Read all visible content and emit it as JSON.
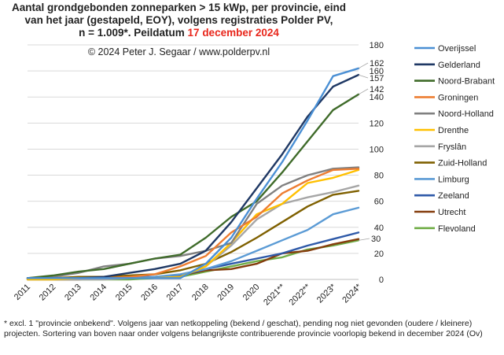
{
  "header": {
    "title_line1": "Aantal grondgebonden zonneparken > 15 kWp, per provincie, eind",
    "title_line2": "van het jaar (gestapeld, EOY), volgens registraties Polder PV,",
    "title_line3_prefix": "n = 1.009*. Peildatum ",
    "title_line3_date": "17 december 2024",
    "copyright": "© 2024 Peter J. Segaar / www.polderpv.nl"
  },
  "footnote": "* excl. 1 \"provincie onbekend\". Volgens jaar van netkoppeling (bekend / geschat), pending nog niet gevonden (oudere / kleinere) projecten. Sortering van boven naar onder volgens belangrijkste contribuerende provincie voorlopig bekend in december 2024 (Ov)",
  "colors": {
    "highlight": "#e8261b",
    "grid": "#d9d9d9",
    "text": "#222222"
  },
  "chart_data": {
    "type": "line",
    "title": "",
    "xlabel": "",
    "ylabel": "",
    "categories": [
      "2011",
      "2012",
      "2013",
      "2014",
      "2015",
      "2016",
      "2017",
      "2018",
      "2019",
      "2020",
      "2021**",
      "2022**",
      "2023*",
      "2024*"
    ],
    "ylim": [
      0,
      180
    ],
    "yticks": [
      0,
      20,
      40,
      60,
      80,
      100,
      120,
      140,
      160,
      180
    ],
    "y_axis_position": "right",
    "grid": true,
    "legend_position": "right",
    "series": [
      {
        "name": "Overijssel",
        "color": "#4a8fd4",
        "values": [
          1,
          1,
          1,
          1,
          1,
          1,
          1,
          12,
          32,
          62,
          90,
          122,
          156,
          162
        ]
      },
      {
        "name": "Gelderland",
        "color": "#1f3864",
        "values": [
          1,
          1,
          1,
          2,
          5,
          8,
          12,
          22,
          44,
          70,
          96,
          125,
          148,
          157
        ]
      },
      {
        "name": "Noord-Brabant",
        "color": "#3f6b2a",
        "values": [
          1,
          3,
          6,
          8,
          12,
          16,
          19,
          32,
          48,
          60,
          82,
          106,
          130,
          142
        ]
      },
      {
        "name": "Groningen",
        "color": "#ed7d31",
        "values": [
          1,
          1,
          1,
          1,
          2,
          4,
          10,
          18,
          36,
          48,
          66,
          76,
          84,
          85
        ]
      },
      {
        "name": "Noord-Holland",
        "color": "#808080",
        "values": [
          1,
          2,
          5,
          10,
          12,
          16,
          18,
          22,
          28,
          58,
          72,
          80,
          85,
          86
        ]
      },
      {
        "name": "Drenthe",
        "color": "#ffc000",
        "values": [
          0,
          0,
          1,
          1,
          1,
          1,
          2,
          10,
          28,
          50,
          58,
          74,
          78,
          84
        ]
      },
      {
        "name": "Fryslân",
        "color": "#a6a6a6",
        "values": [
          0,
          0,
          0,
          0,
          1,
          1,
          2,
          10,
          26,
          46,
          58,
          63,
          67,
          72
        ]
      },
      {
        "name": "Zuid-Holland",
        "color": "#7f6000",
        "values": [
          1,
          1,
          2,
          2,
          3,
          4,
          7,
          12,
          21,
          32,
          44,
          56,
          65,
          68
        ]
      },
      {
        "name": "Limburg",
        "color": "#5b9bd5",
        "values": [
          0,
          0,
          1,
          1,
          1,
          2,
          4,
          8,
          14,
          22,
          30,
          38,
          50,
          55
        ]
      },
      {
        "name": "Zeeland",
        "color": "#2e59a8",
        "values": [
          1,
          1,
          1,
          1,
          2,
          2,
          3,
          8,
          12,
          16,
          20,
          26,
          31,
          36
        ]
      },
      {
        "name": "Utrecht",
        "color": "#843c0c",
        "values": [
          0,
          0,
          0,
          1,
          1,
          2,
          3,
          7,
          8,
          12,
          20,
          22,
          27,
          31
        ]
      },
      {
        "name": "Flevoland",
        "color": "#70ad47",
        "values": [
          0,
          0,
          0,
          0,
          0,
          1,
          2,
          6,
          10,
          14,
          17,
          23,
          26,
          30
        ]
      }
    ],
    "end_labels": [
      {
        "series": "Overijssel",
        "text": "162"
      },
      {
        "series": "Gelderland",
        "text": "157"
      },
      {
        "series": "Noord-Brabant",
        "text": "142"
      },
      {
        "series": "Flevoland",
        "text": "30"
      }
    ]
  }
}
